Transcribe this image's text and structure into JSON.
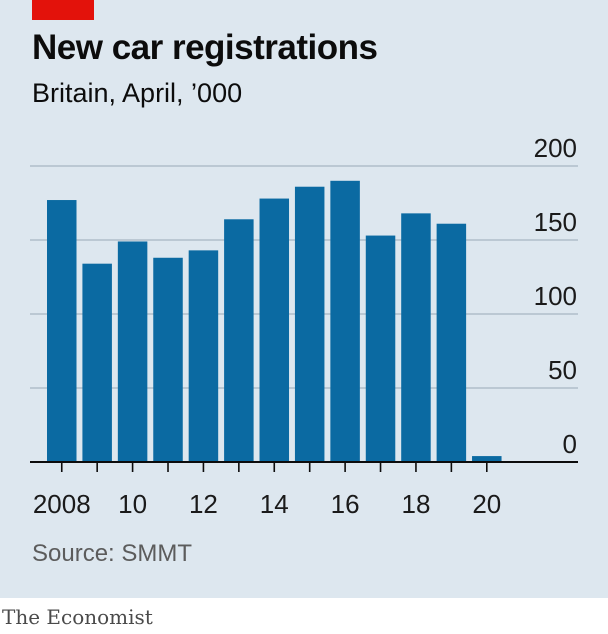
{
  "header": {
    "title": "New car registrations",
    "subtitle": "Britain, April, ’000"
  },
  "footer": {
    "source": "Source: SMMT",
    "brand": "The Economist"
  },
  "colors": {
    "bar": "#0b6aa2",
    "accent": "#e3120b",
    "background": "#dde7ef",
    "grid": "#a7b6c2"
  },
  "chart_data": {
    "type": "bar",
    "categories": [
      "2008",
      "2009",
      "2010",
      "2011",
      "2012",
      "2013",
      "2014",
      "2015",
      "2016",
      "2017",
      "2018",
      "2019",
      "2020"
    ],
    "values": [
      177,
      134,
      149,
      138,
      143,
      164,
      178,
      186,
      190,
      153,
      168,
      161,
      4
    ],
    "x_tick_labels": [
      "2008",
      "10",
      "12",
      "14",
      "16",
      "18",
      "20"
    ],
    "y_ticks": [
      0,
      50,
      100,
      150,
      200
    ],
    "y_tick_labels": [
      "0",
      "50",
      "100",
      "150",
      "200"
    ],
    "ylim": [
      0,
      200
    ],
    "grid": true,
    "y_axis_side": "right"
  }
}
